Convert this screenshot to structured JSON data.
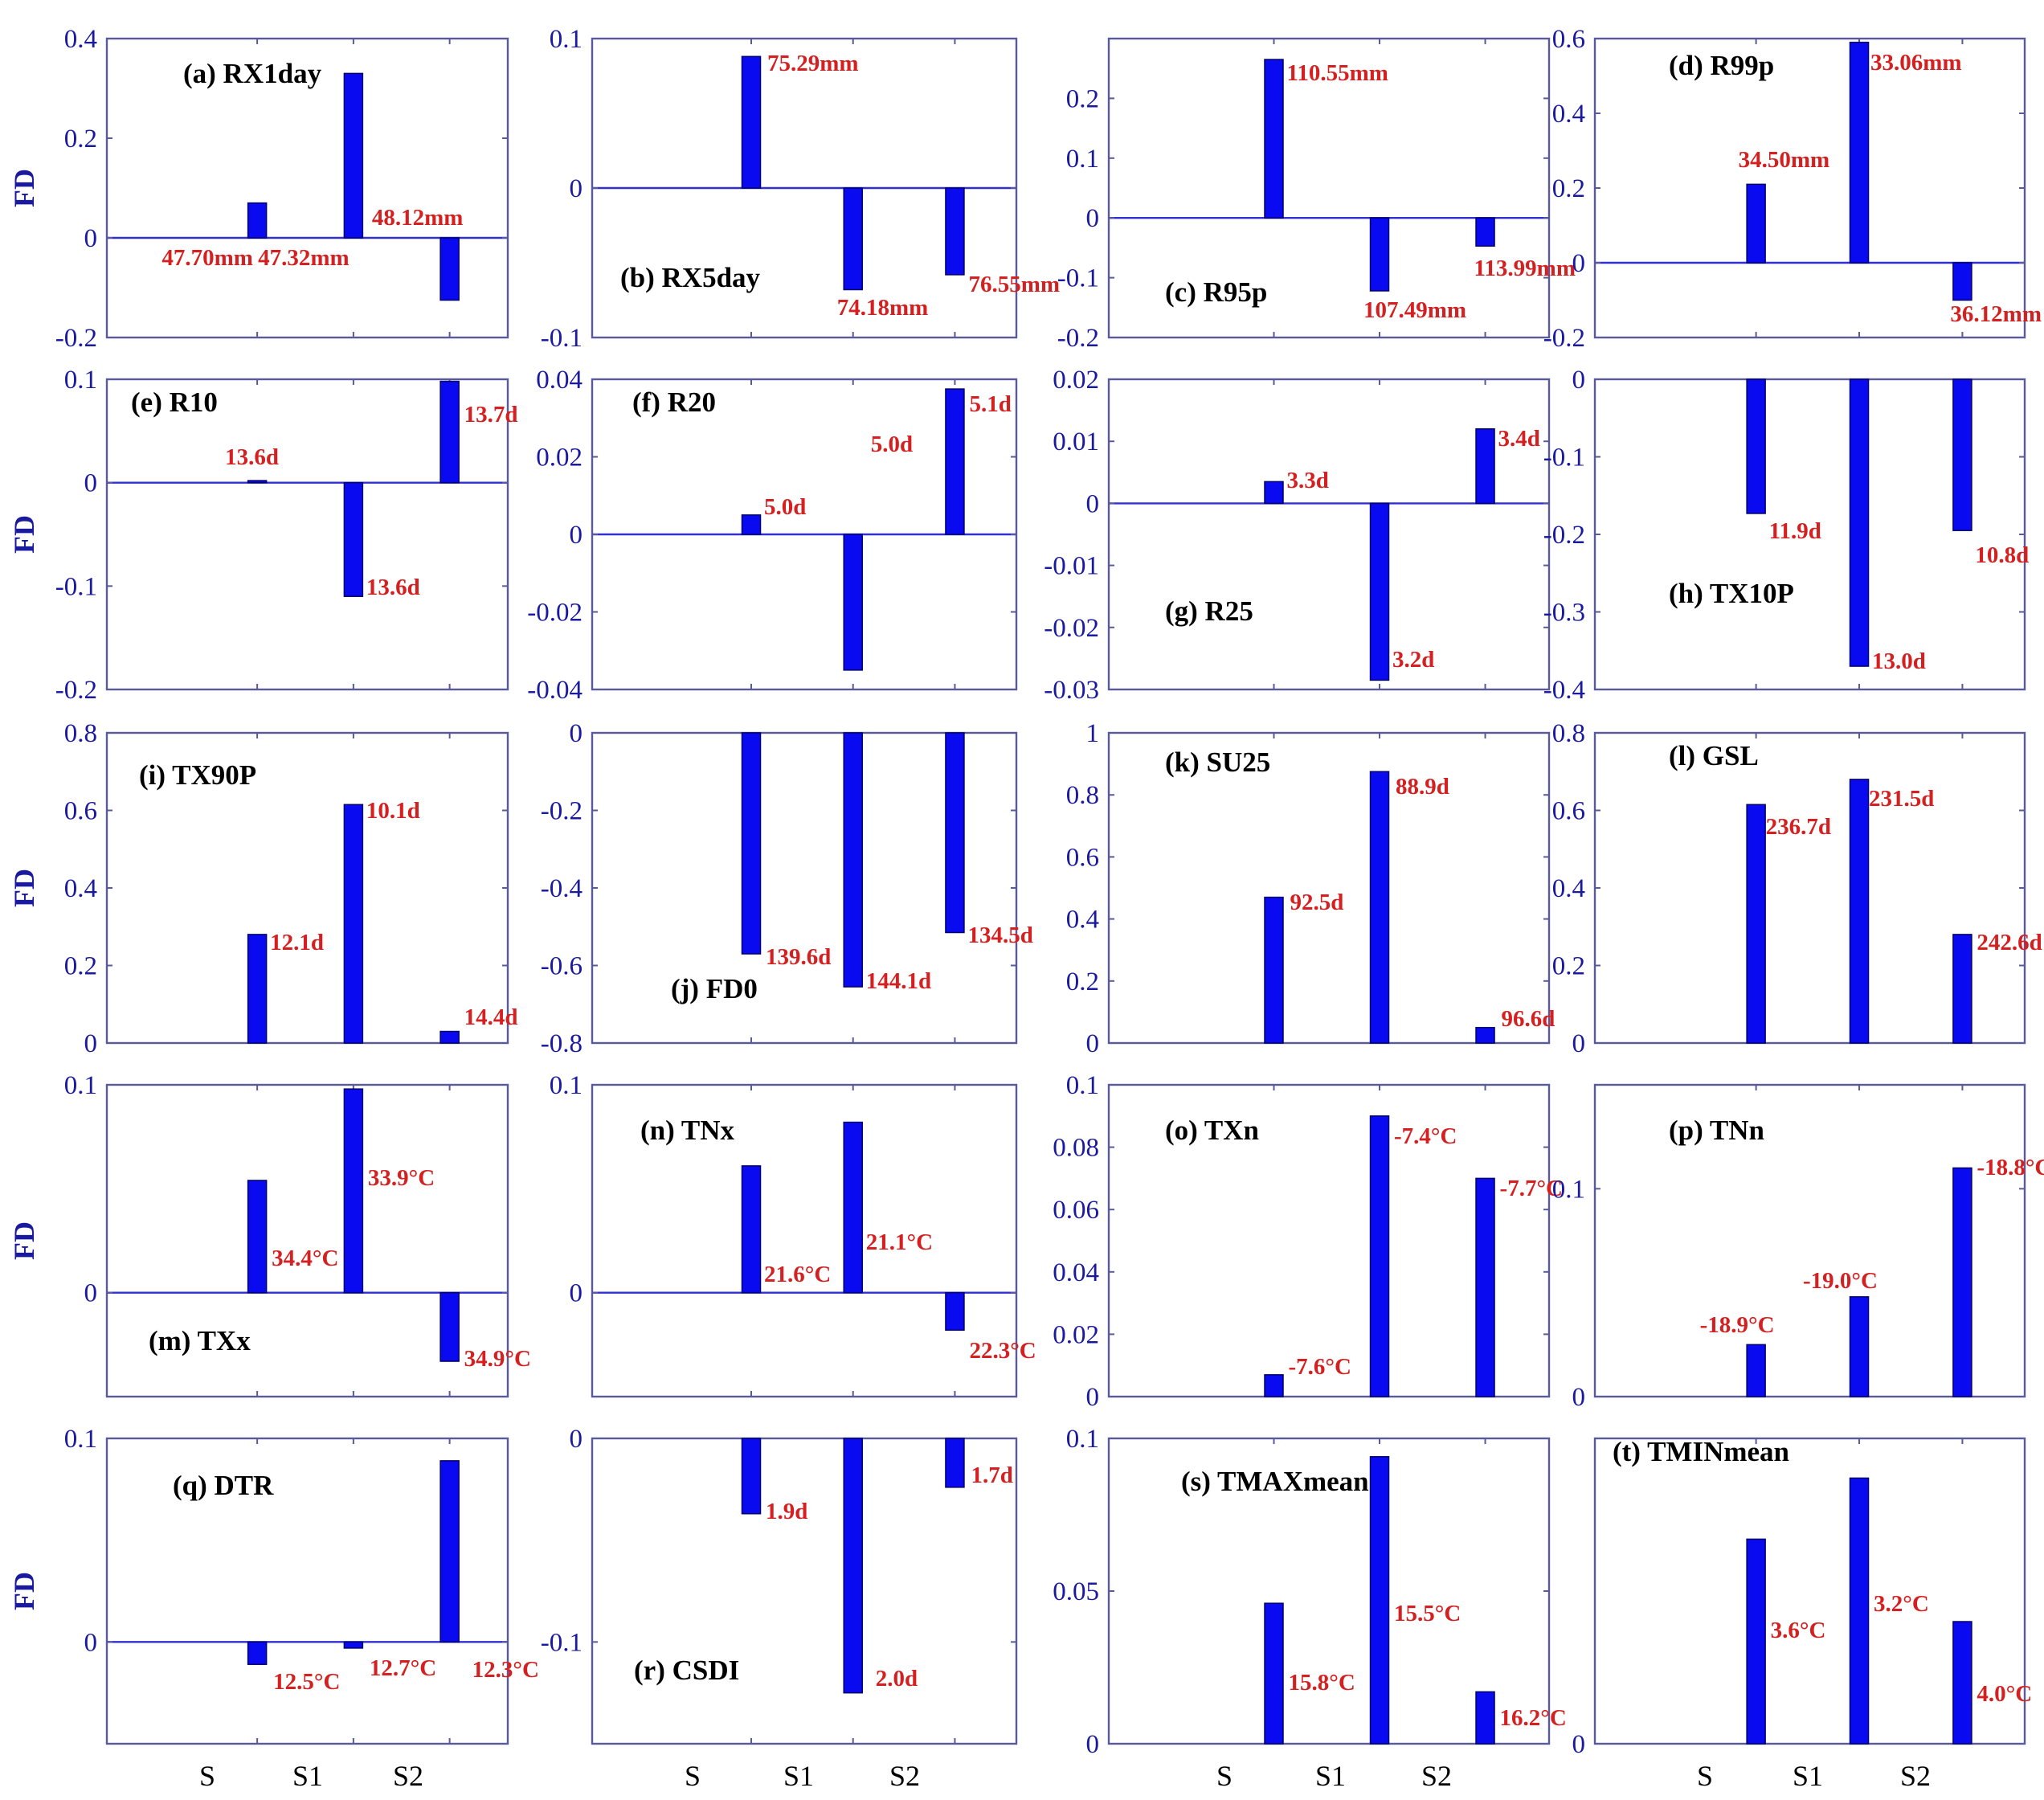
{
  "chart_data": [
    {
      "panel": "a",
      "type": "bar",
      "title": "(a) RX1day",
      "ylabel": "FD",
      "categories": [
        "S",
        "S1",
        "S2"
      ],
      "values": [
        0.07,
        0.33,
        -0.125
      ],
      "labels": [
        "47.70mm",
        "47.32mm",
        "48.12mm"
      ],
      "ylim": [
        -0.2,
        0.4
      ],
      "yticks": [
        -0.2,
        0,
        0.2,
        0.4
      ],
      "tick_labels": [
        "-0.2",
        "0",
        "0.2",
        "0.4"
      ]
    },
    {
      "panel": "b",
      "type": "bar",
      "title": "(b) RX5day",
      "ylabel": "",
      "categories": [
        "S",
        "S1",
        "S2"
      ],
      "values": [
        0.088,
        -0.068,
        -0.058
      ],
      "labels": [
        "75.29mm",
        "74.18mm",
        "76.55mm"
      ],
      "ylim": [
        -0.1,
        0.1
      ],
      "yticks": [
        -0.1,
        0,
        0.1
      ],
      "tick_labels": [
        "-0.1",
        "0",
        "0.1"
      ]
    },
    {
      "panel": "c",
      "type": "bar",
      "title": "(c) R95p",
      "ylabel": "",
      "categories": [
        "S",
        "S1",
        "S2"
      ],
      "values": [
        0.265,
        -0.122,
        -0.047
      ],
      "labels": [
        "110.55mm",
        "107.49mm",
        "113.99mm"
      ],
      "ylim": [
        -0.2,
        0.3
      ],
      "yticks": [
        -0.2,
        -0.1,
        0,
        0.1,
        0.2
      ],
      "tick_labels": [
        "-0.2",
        "-0.1",
        "0",
        "0.1",
        "0.2"
      ]
    },
    {
      "panel": "d",
      "type": "bar",
      "title": "(d) R99p",
      "ylabel": "",
      "categories": [
        "S",
        "S1",
        "S2"
      ],
      "values": [
        0.21,
        0.59,
        -0.1
      ],
      "labels": [
        "34.50mm",
        "33.06mm",
        "36.12mm"
      ],
      "ylim": [
        -0.2,
        0.6
      ],
      "yticks": [
        -0.2,
        0,
        0.2,
        0.4,
        0.6
      ],
      "tick_labels": [
        "-0.2",
        "0",
        "0.2",
        "0.4",
        "0.6"
      ]
    },
    {
      "panel": "e",
      "type": "bar",
      "title": "(e) R10",
      "ylabel": "FD",
      "categories": [
        "S",
        "S1",
        "S2"
      ],
      "values": [
        0.002,
        -0.11,
        0.098
      ],
      "labels": [
        "13.6d",
        "13.6d",
        "13.7d"
      ],
      "ylim": [
        -0.2,
        0.1
      ],
      "yticks": [
        -0.2,
        -0.1,
        0,
        0.1
      ],
      "tick_labels": [
        "-0.2",
        "-0.1",
        "0",
        "0.1"
      ]
    },
    {
      "panel": "f",
      "type": "bar",
      "title": "(f) R20",
      "ylabel": "",
      "categories": [
        "S",
        "S1",
        "S2"
      ],
      "values": [
        0.005,
        -0.035,
        0.0375
      ],
      "labels": [
        "5.0d",
        "5.0d",
        "5.1d"
      ],
      "ylim": [
        -0.04,
        0.04
      ],
      "yticks": [
        -0.04,
        -0.02,
        0,
        0.02,
        0.04
      ],
      "tick_labels": [
        "-0.04",
        "-0.02",
        "0",
        "0.02",
        "0.04"
      ]
    },
    {
      "panel": "g",
      "type": "bar",
      "title": "(g) R25",
      "ylabel": "",
      "categories": [
        "S",
        "S1",
        "S2"
      ],
      "values": [
        0.0035,
        -0.0285,
        0.012
      ],
      "labels": [
        "3.3d",
        "3.2d",
        "3.4d"
      ],
      "ylim": [
        -0.03,
        0.02
      ],
      "yticks": [
        -0.03,
        -0.02,
        -0.01,
        0,
        0.01,
        0.02
      ],
      "tick_labels": [
        "-0.03",
        "-0.02",
        "-0.01",
        "0",
        "0.01",
        "0.02"
      ]
    },
    {
      "panel": "h",
      "type": "bar",
      "title": "(h) TX10P",
      "ylabel": "",
      "categories": [
        "S",
        "S1",
        "S2"
      ],
      "values": [
        -0.173,
        -0.37,
        -0.195
      ],
      "labels": [
        "11.9d",
        "13.0d",
        "10.8d"
      ],
      "ylim": [
        -0.4,
        0
      ],
      "yticks": [
        -0.4,
        -0.3,
        -0.2,
        -0.1,
        0
      ],
      "tick_labels": [
        "-0.4",
        "-0.3",
        "-0.2",
        "-0.1",
        "0"
      ]
    },
    {
      "panel": "i",
      "type": "bar",
      "title": "(i) TX90P",
      "ylabel": "FD",
      "categories": [
        "S",
        "S1",
        "S2"
      ],
      "values": [
        0.28,
        0.615,
        0.03
      ],
      "labels": [
        "12.1d",
        "10.1d",
        "14.4d"
      ],
      "ylim": [
        0,
        0.8
      ],
      "yticks": [
        0,
        0.2,
        0.4,
        0.6,
        0.8
      ],
      "tick_labels": [
        "0",
        "0.2",
        "0.4",
        "0.6",
        "0.8"
      ]
    },
    {
      "panel": "j",
      "type": "bar",
      "title": "(j) FD0",
      "ylabel": "",
      "categories": [
        "S",
        "S1",
        "S2"
      ],
      "values": [
        -0.57,
        -0.655,
        -0.515
      ],
      "labels": [
        "139.6d",
        "144.1d",
        "134.5d"
      ],
      "ylim": [
        -0.8,
        0
      ],
      "yticks": [
        -0.8,
        -0.6,
        -0.4,
        -0.2,
        0
      ],
      "tick_labels": [
        "-0.8",
        "-0.6",
        "-0.4",
        "-0.2",
        "0"
      ]
    },
    {
      "panel": "k",
      "type": "bar",
      "title": "(k) SU25",
      "ylabel": "",
      "categories": [
        "S",
        "S1",
        "S2"
      ],
      "values": [
        0.47,
        0.875,
        0.05
      ],
      "labels": [
        "92.5d",
        "88.9d",
        "96.6d"
      ],
      "ylim": [
        0,
        1
      ],
      "yticks": [
        0,
        0.2,
        0.4,
        0.6,
        0.8,
        1
      ],
      "tick_labels": [
        "0",
        "0.2",
        "0.4",
        "0.6",
        "0.8",
        "1"
      ]
    },
    {
      "panel": "l",
      "type": "bar",
      "title": "(l) GSL",
      "ylabel": "",
      "categories": [
        "S",
        "S1",
        "S2"
      ],
      "values": [
        0.615,
        0.68,
        0.28
      ],
      "labels": [
        "236.7d",
        "231.5d",
        "242.6d"
      ],
      "ylim": [
        0,
        0.8
      ],
      "yticks": [
        0,
        0.2,
        0.4,
        0.6,
        0.8
      ],
      "tick_labels": [
        "0",
        "0.2",
        "0.4",
        "0.6",
        "0.8"
      ]
    },
    {
      "panel": "m",
      "type": "bar",
      "title": "(m) TXx",
      "ylabel": "FD",
      "categories": [
        "S",
        "S1",
        "S2"
      ],
      "values": [
        0.054,
        0.098,
        -0.033
      ],
      "labels": [
        "34.4°C",
        "33.9°C",
        "34.9°C"
      ],
      "ylim": [
        -0.05,
        0.1
      ],
      "yticks": [
        0,
        0.1
      ],
      "tick_labels": [
        "0",
        "0.1"
      ]
    },
    {
      "panel": "n",
      "type": "bar",
      "title": "(n) TNx",
      "ylabel": "",
      "categories": [
        "S",
        "S1",
        "S2"
      ],
      "values": [
        0.061,
        0.082,
        -0.018
      ],
      "labels": [
        "21.6°C",
        "21.1°C",
        "22.3°C"
      ],
      "ylim": [
        -0.05,
        0.1
      ],
      "yticks": [
        0,
        0.1
      ],
      "tick_labels": [
        "0",
        "0.1"
      ]
    },
    {
      "panel": "o",
      "type": "bar",
      "title": "(o) TXn",
      "ylabel": "",
      "categories": [
        "S",
        "S1",
        "S2"
      ],
      "values": [
        0.007,
        0.09,
        0.07
      ],
      "labels": [
        "-7.6°C",
        "-7.4°C",
        "-7.7°C"
      ],
      "ylim": [
        0,
        0.1
      ],
      "yticks": [
        0,
        0.02,
        0.04,
        0.06,
        0.08,
        0.1
      ],
      "tick_labels": [
        "0",
        "0.02",
        "0.04",
        "0.06",
        "0.08",
        "0.1"
      ]
    },
    {
      "panel": "p",
      "type": "bar",
      "title": "(p) TNn",
      "ylabel": "",
      "categories": [
        "S",
        "S1",
        "S2"
      ],
      "values": [
        0.025,
        0.048,
        0.11
      ],
      "labels": [
        "-18.9°C",
        "-19.0°C",
        "-18.8°C"
      ],
      "ylim": [
        0,
        0.15
      ],
      "yticks": [
        0,
        0.1
      ],
      "tick_labels": [
        "0",
        "0.1"
      ]
    },
    {
      "panel": "q",
      "type": "bar",
      "title": "(q) DTR",
      "ylabel": "FD",
      "categories": [
        "S",
        "S1",
        "S2"
      ],
      "values": [
        -0.011,
        -0.003,
        0.089
      ],
      "labels": [
        "12.5°C",
        "12.7°C",
        "12.3°C"
      ],
      "ylim": [
        -0.05,
        0.1
      ],
      "yticks": [
        0,
        0.1
      ],
      "tick_labels": [
        "0",
        "0.1"
      ]
    },
    {
      "panel": "r",
      "type": "bar",
      "title": "(r) CSDI",
      "ylabel": "",
      "categories": [
        "S",
        "S1",
        "S2"
      ],
      "values": [
        -0.037,
        -0.125,
        -0.024
      ],
      "labels": [
        "1.9d",
        "2.0d",
        "1.7d"
      ],
      "ylim": [
        -0.15,
        0
      ],
      "yticks": [
        -0.1,
        0
      ],
      "tick_labels": [
        "-0.1",
        "0"
      ]
    },
    {
      "panel": "s",
      "type": "bar",
      "title": "(s) TMAXmean",
      "ylabel": "",
      "categories": [
        "S",
        "S1",
        "S2"
      ],
      "values": [
        0.046,
        0.094,
        0.017
      ],
      "labels": [
        "15.8°C",
        "15.5°C",
        "16.2°C"
      ],
      "ylim": [
        0,
        0.1
      ],
      "yticks": [
        0,
        0.05,
        0.1
      ],
      "tick_labels": [
        "0",
        "0.05",
        "0.1"
      ]
    },
    {
      "panel": "t",
      "type": "bar",
      "title": "(t) TMINmean",
      "ylabel": "",
      "categories": [
        "S",
        "S1",
        "S2"
      ],
      "values": [
        0.067,
        0.087,
        0.04
      ],
      "labels": [
        "3.6°C",
        "3.2°C",
        "4.0°C"
      ],
      "ylim": [
        0,
        0.1
      ],
      "yticks": [
        0
      ],
      "tick_labels": [
        "0"
      ]
    }
  ],
  "x_axis_labels": [
    "S",
    "S1",
    "S2"
  ],
  "colors": {
    "bar": "#0a0af0",
    "label": "#d42020",
    "axis": "#1a1aa0"
  }
}
